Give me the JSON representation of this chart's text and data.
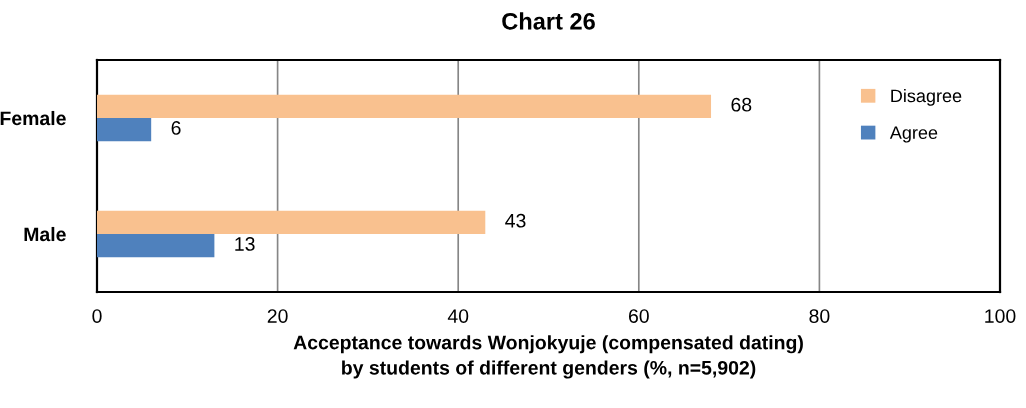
{
  "chart_data": {
    "type": "bar",
    "orientation": "horizontal",
    "title": "Chart 26",
    "xlabel": "Acceptance towards Wonjokyuje (compensated dating)\nby students of different genders (%, n=5,902)",
    "categories": [
      "Female",
      "Male"
    ],
    "series": [
      {
        "name": "Disagree",
        "color": "#f9c18f",
        "values": [
          68,
          43
        ]
      },
      {
        "name": "Agree",
        "color": "#4f81bd",
        "values": [
          6,
          13
        ]
      }
    ],
    "xlim": [
      0,
      100
    ],
    "xticks": [
      0,
      20,
      40,
      60,
      80,
      100
    ],
    "grid": "x",
    "legend": "top right",
    "data_labels": true
  }
}
